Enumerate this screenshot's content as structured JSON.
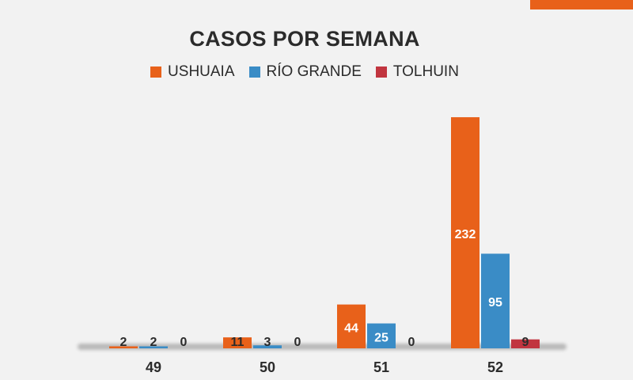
{
  "colors": {
    "accent": "#e8611a",
    "ushuaia": "#e8611a",
    "rio_grande": "#3a8cc6",
    "tolhuin": "#c1353f",
    "bar_label_light": "#ffffff",
    "bar_label_dark": "#2b2b2b"
  },
  "chart_data": {
    "type": "bar",
    "title": "CASOS POR SEMANA",
    "xlabel": "",
    "ylabel": "",
    "categories": [
      "49",
      "50",
      "51",
      "52"
    ],
    "series": [
      {
        "name": "USHUAIA",
        "values": [
          2,
          11,
          44,
          232
        ]
      },
      {
        "name": "RÍO GRANDE",
        "values": [
          2,
          3,
          25,
          95
        ]
      },
      {
        "name": "TOLHUIN",
        "values": [
          0,
          0,
          0,
          9
        ]
      }
    ],
    "ylim": [
      0,
      240
    ],
    "grid": false,
    "legend_position": "top-center"
  }
}
